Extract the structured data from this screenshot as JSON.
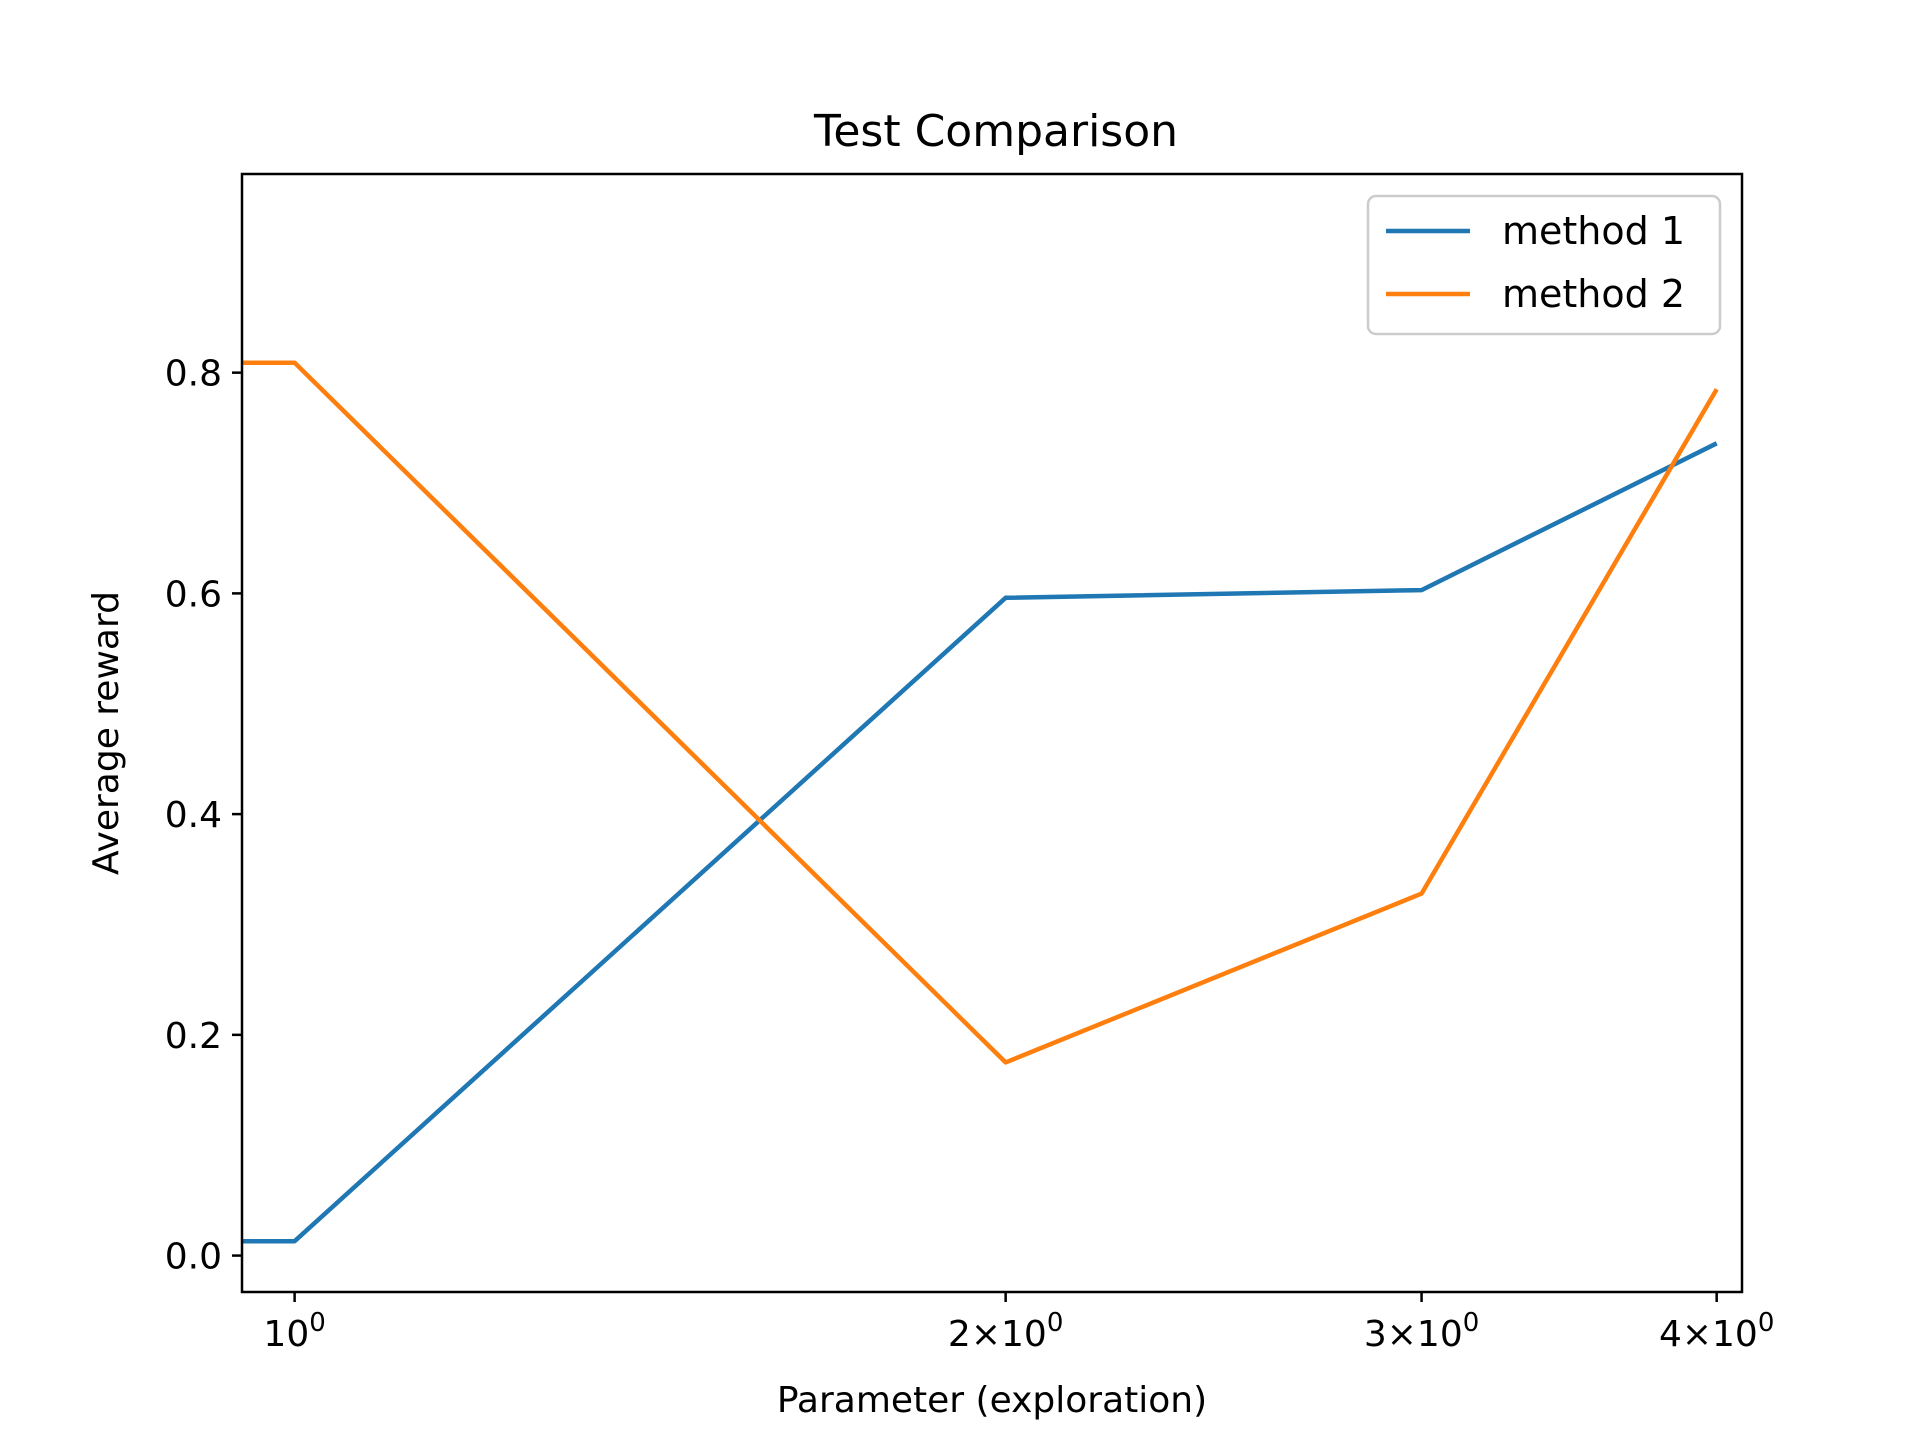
{
  "chart_data": {
    "type": "line",
    "title": "Test Comparison",
    "xlabel": "Parameter (exploration)",
    "ylabel": "Average reward",
    "xscale": "log",
    "xlim": [
      0.95,
      4.1
    ],
    "ylim": [
      -0.033,
      0.98
    ],
    "grid": false,
    "legend_position": "top-right",
    "x": [
      0.94,
      1,
      2,
      3,
      4
    ],
    "series": [
      {
        "name": "method 1",
        "color": "#1f77b4",
        "values": [
          0.013,
          0.013,
          0.596,
          0.603,
          0.736
        ]
      },
      {
        "name": "method 2",
        "color": "#ff7f0e",
        "values": [
          0.809,
          0.809,
          0.175,
          0.328,
          0.785
        ]
      }
    ],
    "x_ticks": [
      {
        "value": 1,
        "mantissa": "",
        "exponent": "0"
      },
      {
        "value": 2,
        "mantissa": "2",
        "exponent": "0"
      },
      {
        "value": 3,
        "mantissa": "3",
        "exponent": "0"
      },
      {
        "value": 4,
        "mantissa": "4",
        "exponent": "0"
      }
    ],
    "y_ticks": [
      {
        "value": 0.0,
        "label": "0.0"
      },
      {
        "value": 0.2,
        "label": "0.2"
      },
      {
        "value": 0.4,
        "label": "0.4"
      },
      {
        "value": 0.6,
        "label": "0.6"
      },
      {
        "value": 0.8,
        "label": "0.8"
      }
    ]
  }
}
